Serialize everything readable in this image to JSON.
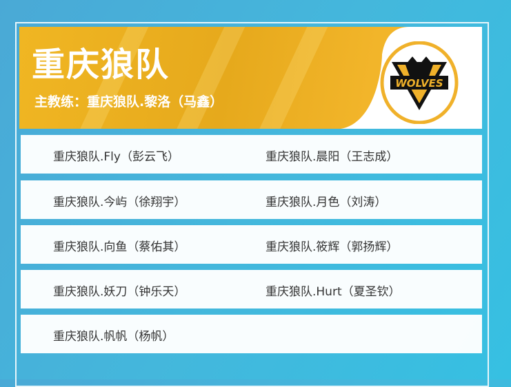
{
  "team": {
    "title": "重庆狼队",
    "coach": "主教练：重庆狼队.黎洛（马鑫）",
    "logo_text": "WOLVES"
  },
  "colors": {
    "gold": "#f0b623",
    "blue": "#44b7dc"
  },
  "players": [
    [
      "重庆狼队.Fly（彭云飞）",
      "重庆狼队.晨阳（王志成）"
    ],
    [
      "重庆狼队.今屿（徐翔宇）",
      "重庆狼队.月色（刘涛）"
    ],
    [
      "重庆狼队.向鱼（蔡佑其）",
      "重庆狼队.筱辉（郭扬辉）"
    ],
    [
      "重庆狼队.妖刀（钟乐天）",
      "重庆狼队.Hurt（夏圣钦）"
    ],
    [
      "重庆狼队.帆帆（杨帆）",
      ""
    ]
  ]
}
